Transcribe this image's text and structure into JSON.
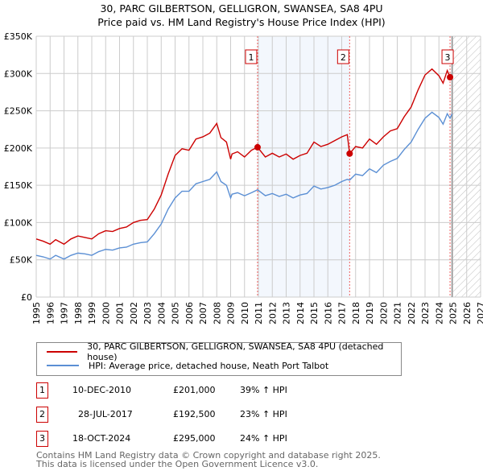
{
  "title": "30, PARC GILBERTSON, GELLIGRON, SWANSEA, SA8 4PU",
  "subtitle": "Price paid vs. HM Land Registry's House Price Index (HPI)",
  "chart_data": {
    "type": "line",
    "ylim": [
      0,
      350000
    ],
    "xlim": [
      1995,
      2027
    ],
    "yticks": [
      {
        "v": 0,
        "label": "£0"
      },
      {
        "v": 50000,
        "label": "£50K"
      },
      {
        "v": 100000,
        "label": "£100K"
      },
      {
        "v": 150000,
        "label": "£150K"
      },
      {
        "v": 200000,
        "label": "£200K"
      },
      {
        "v": 250000,
        "label": "£250K"
      },
      {
        "v": 300000,
        "label": "£300K"
      },
      {
        "v": 350000,
        "label": "£350K"
      }
    ],
    "xticks": [
      "1995",
      "1996",
      "1997",
      "1998",
      "1999",
      "2000",
      "2001",
      "2002",
      "2003",
      "2004",
      "2005",
      "2006",
      "2007",
      "2008",
      "2009",
      "2010",
      "2011",
      "2012",
      "2013",
      "2014",
      "2015",
      "2016",
      "2017",
      "2018",
      "2019",
      "2020",
      "2021",
      "2022",
      "2023",
      "2024",
      "2025",
      "2026",
      "2027"
    ],
    "series": [
      {
        "name": "30, PARC GILBERTSON, GELLIGRON, SWANSEA, SA8 4PU (detached house)",
        "color": "#cc0000",
        "x": [
          1995,
          1995.5,
          1996,
          1996.4,
          1997,
          1997.5,
          1998,
          1998.5,
          1999,
          1999.5,
          2000,
          2000.5,
          2001,
          2001.5,
          2002,
          2002.5,
          2003,
          2003.5,
          2004,
          2004.5,
          2005,
          2005.5,
          2006,
          2006.5,
          2007,
          2007.5,
          2008,
          2008.3,
          2008.7,
          2009,
          2009.1,
          2009.5,
          2010,
          2010.5,
          2010.94,
          2011.5,
          2012,
          2012.5,
          2013,
          2013.5,
          2014,
          2014.5,
          2015,
          2015.5,
          2016,
          2016.5,
          2017,
          2017.4,
          2017.57,
          2018,
          2018.5,
          2019,
          2019.5,
          2020,
          2020.5,
          2021,
          2021.5,
          2022,
          2022.5,
          2023,
          2023.5,
          2024,
          2024.3,
          2024.6,
          2024.8,
          2024.95
        ],
        "y": [
          78000,
          75000,
          71000,
          77000,
          71000,
          78000,
          82000,
          80000,
          78000,
          85000,
          89000,
          88000,
          92000,
          94000,
          100000,
          103000,
          104000,
          118000,
          137000,
          165000,
          190000,
          199000,
          197000,
          212000,
          215000,
          220000,
          233000,
          214000,
          208000,
          185000,
          192000,
          195000,
          188000,
          197000,
          201000,
          188000,
          193000,
          188000,
          192000,
          185000,
          190000,
          193000,
          208000,
          202000,
          205000,
          210000,
          215000,
          218000,
          192500,
          202000,
          200000,
          212000,
          205000,
          215000,
          223000,
          226000,
          242000,
          255000,
          278000,
          298000,
          306000,
          297000,
          287000,
          304000,
          295000,
          297000
        ]
      },
      {
        "name": "HPI: Average price, detached house, Neath Port Talbot",
        "color": "#5b8fd4",
        "x": [
          1995,
          1995.5,
          1996,
          1996.4,
          1997,
          1997.5,
          1998,
          1998.5,
          1999,
          1999.5,
          2000,
          2000.5,
          2001,
          2001.5,
          2002,
          2002.5,
          2003,
          2003.5,
          2004,
          2004.5,
          2005,
          2005.5,
          2006,
          2006.5,
          2007,
          2007.5,
          2008,
          2008.3,
          2008.7,
          2009,
          2009.1,
          2009.5,
          2010,
          2010.5,
          2010.94,
          2011.5,
          2012,
          2012.5,
          2013,
          2013.5,
          2014,
          2014.5,
          2015,
          2015.5,
          2016,
          2016.5,
          2017,
          2017.4,
          2017.57,
          2018,
          2018.5,
          2019,
          2019.5,
          2020,
          2020.5,
          2021,
          2021.5,
          2022,
          2022.5,
          2023,
          2023.5,
          2024,
          2024.3,
          2024.6,
          2024.8,
          2024.95
        ],
        "y": [
          56000,
          54000,
          51000,
          56000,
          51000,
          56000,
          59000,
          58000,
          56000,
          61000,
          64000,
          63000,
          66000,
          67000,
          71000,
          73000,
          74000,
          85000,
          98000,
          118000,
          133000,
          142000,
          142000,
          152000,
          155000,
          158000,
          168000,
          155000,
          150000,
          133000,
          138000,
          140000,
          136000,
          140000,
          144000,
          136000,
          139000,
          135000,
          138000,
          133000,
          137000,
          139000,
          149000,
          145000,
          147000,
          150000,
          155000,
          158000,
          157000,
          165000,
          163000,
          172000,
          167000,
          177000,
          182000,
          186000,
          198000,
          208000,
          225000,
          240000,
          248000,
          241000,
          232000,
          246000,
          240000,
          246000
        ]
      }
    ],
    "sales": [
      {
        "label": "1",
        "x": 2010.94,
        "y": 201000
      },
      {
        "label": "2",
        "x": 2017.57,
        "y": 192500
      },
      {
        "label": "3",
        "x": 2024.8,
        "y": 295000
      }
    ],
    "shaded_range": [
      2010.94,
      2017.57
    ],
    "forecast_from": 2025,
    "legend_position": "bottom"
  },
  "transactions": [
    {
      "num": "1",
      "date": "10-DEC-2010",
      "price": "£201,000",
      "hpi": "39% ↑ HPI"
    },
    {
      "num": "2",
      "date": "28-JUL-2017",
      "price": "£192,500",
      "hpi": "23% ↑ HPI"
    },
    {
      "num": "3",
      "date": "18-OCT-2024",
      "price": "£295,000",
      "hpi": "24% ↑ HPI"
    }
  ],
  "footer": {
    "line1": "Contains HM Land Registry data © Crown copyright and database right 2025.",
    "line2": "This data is licensed under the Open Government Licence v3.0."
  }
}
